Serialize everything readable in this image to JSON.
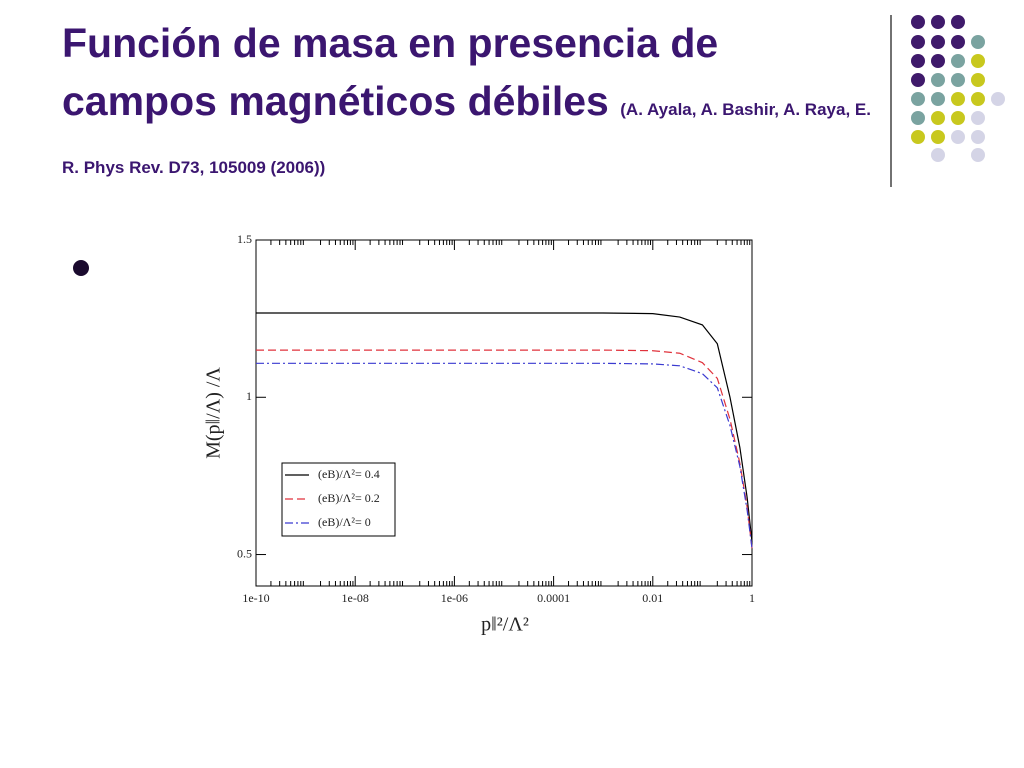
{
  "slide": {
    "title": "Función de masa en presencia de campos magnéticos débiles",
    "citation": "(A. Ayala, A. Bashir, A. Raya, E. R. Phys Rev. D73, 105009 (2006))"
  },
  "chart_data": {
    "type": "line",
    "x_label": "p‖²/Λ²",
    "y_label": "M(p‖/Λ) /Λ",
    "x": [
      1e-10,
      1e-08,
      1e-06,
      0.0001,
      0.001,
      0.01,
      0.035,
      0.1,
      0.2,
      0.36,
      0.57,
      0.8,
      1
    ],
    "series": [
      {
        "name": "(eB)/Λ²= 0.4",
        "color": "#000000",
        "dash": "solid",
        "values": [
          1.268,
          1.268,
          1.268,
          1.268,
          1.268,
          1.266,
          1.255,
          1.23,
          1.17,
          1.0,
          0.84,
          0.68,
          0.54
        ]
      },
      {
        "name": "(eB)/Λ²= 0.2",
        "color": "#e0323c",
        "dash": "dashed",
        "values": [
          1.15,
          1.15,
          1.15,
          1.15,
          1.15,
          1.148,
          1.14,
          1.11,
          1.06,
          0.93,
          0.79,
          0.65,
          0.52
        ]
      },
      {
        "name": "(eB)/Λ²= 0",
        "color": "#3a3ad0",
        "dash": "dashdot",
        "values": [
          1.108,
          1.108,
          1.108,
          1.108,
          1.108,
          1.106,
          1.1,
          1.075,
          1.03,
          0.91,
          0.78,
          0.64,
          0.52
        ]
      }
    ],
    "xscale": "log",
    "xlim": [
      1e-10,
      1
    ],
    "xticks": [
      1e-10,
      {
        "value": 1e-08,
        "label": "1e-08"
      },
      {
        "value": 1e-06,
        "label": "1e-06"
      },
      0.0001,
      0.01,
      1
    ],
    "ylim": [
      0.4,
      1.5
    ],
    "yticks": [
      0.5,
      1,
      1.5
    ],
    "grid": false,
    "legend": "lower left"
  }
}
